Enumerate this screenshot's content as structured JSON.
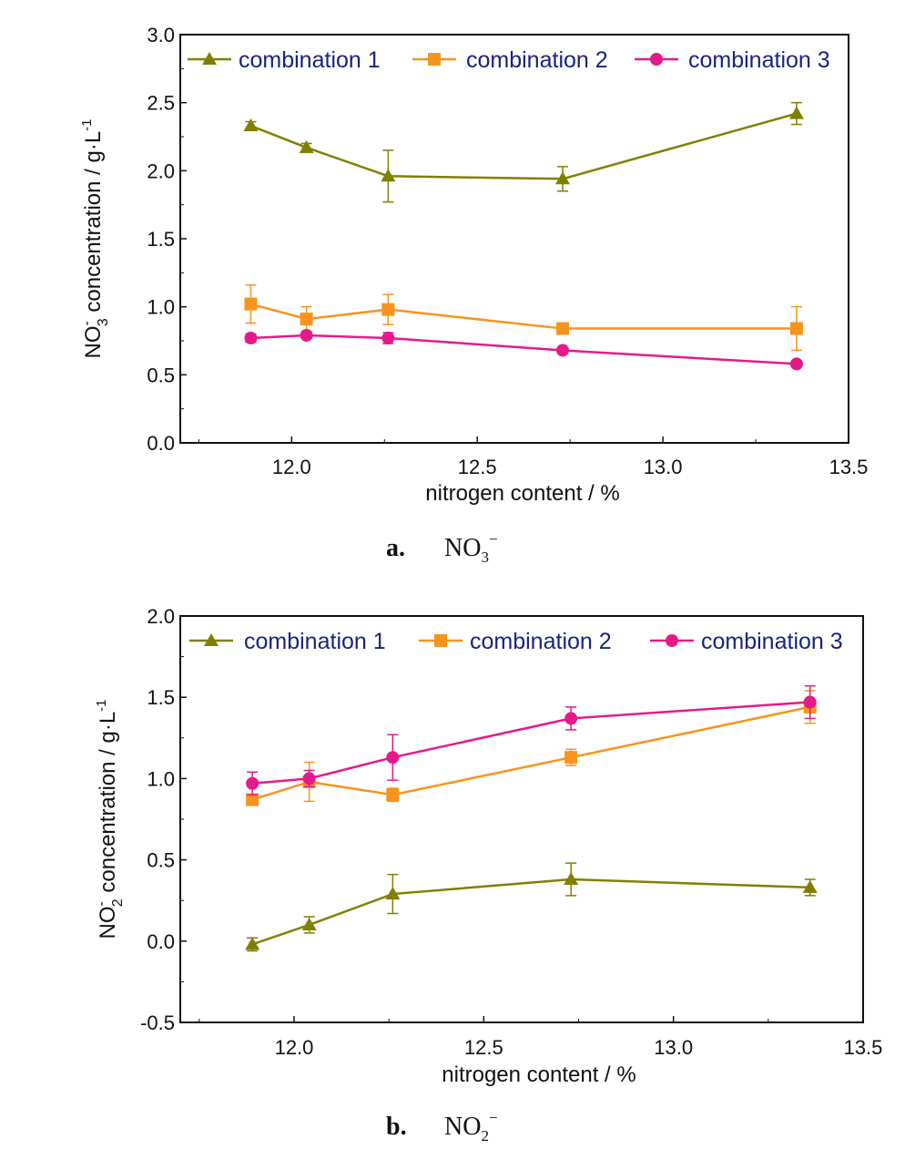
{
  "chart_data": [
    {
      "type": "line",
      "panel_label": "a.",
      "caption_base": "NO",
      "caption_sub": "3",
      "caption_sup": "−",
      "ylabel_main": "NO",
      "ylabel_sup": "-",
      "ylabel_sub": "3",
      "ylabel_rest": " concentration / g·L",
      "ylabel_unit_sup": "-1",
      "xlabel": "nitrogen content / %",
      "xlim": [
        11.7,
        13.5
      ],
      "ylim": [
        0.0,
        3.0
      ],
      "xticks": [
        "12.0",
        "12.5",
        "13.0",
        "13.5"
      ],
      "yticks": [
        "0.0",
        "0.5",
        "1.0",
        "1.5",
        "2.0",
        "2.5",
        "3.0"
      ],
      "legend_position": "top",
      "x": [
        11.89,
        12.04,
        12.26,
        12.73,
        13.36
      ],
      "series": [
        {
          "name": "combination 1",
          "color": "#808000",
          "marker": "triangle",
          "values": [
            2.33,
            2.17,
            1.96,
            1.94,
            2.42
          ],
          "errors": [
            0.03,
            0.03,
            0.19,
            0.09,
            0.08
          ]
        },
        {
          "name": "combination 2",
          "color": "#f7941d",
          "marker": "square",
          "values": [
            1.02,
            0.91,
            0.98,
            0.84,
            0.84
          ],
          "errors": [
            0.14,
            0.09,
            0.11,
            0.03,
            0.16
          ]
        },
        {
          "name": "combination 3",
          "color": "#e6198a",
          "marker": "circle",
          "values": [
            0.77,
            0.79,
            0.77,
            0.68,
            0.58
          ],
          "errors": [
            0.03,
            0.02,
            0.04,
            0.02,
            0.02
          ]
        }
      ]
    },
    {
      "type": "line",
      "panel_label": "b.",
      "caption_base": "NO",
      "caption_sub": "2",
      "caption_sup": "−",
      "ylabel_main": "NO",
      "ylabel_sup": "-",
      "ylabel_sub": "2",
      "ylabel_rest": " concentration / g·L",
      "ylabel_unit_sup": "-1",
      "xlabel": "nitrogen content / %",
      "xlim": [
        11.7,
        13.5
      ],
      "ylim": [
        -0.5,
        2.0
      ],
      "xticks": [
        "12.0",
        "12.5",
        "13.0",
        "13.5"
      ],
      "yticks": [
        "-0.5",
        "0.0",
        "0.5",
        "1.0",
        "1.5",
        "2.0"
      ],
      "legend_position": "top",
      "x": [
        11.89,
        12.04,
        12.26,
        12.73,
        13.36
      ],
      "series": [
        {
          "name": "combination 1",
          "color": "#808000",
          "marker": "triangle",
          "values": [
            -0.02,
            0.1,
            0.29,
            0.38,
            0.33
          ],
          "errors": [
            0.04,
            0.05,
            0.12,
            0.1,
            0.05
          ]
        },
        {
          "name": "combination 2",
          "color": "#f7941d",
          "marker": "square",
          "values": [
            0.87,
            0.98,
            0.9,
            1.13,
            1.44
          ],
          "errors": [
            0.03,
            0.12,
            0.04,
            0.05,
            0.1
          ]
        },
        {
          "name": "combination 3",
          "color": "#e6198a",
          "marker": "circle",
          "values": [
            0.97,
            1.0,
            1.13,
            1.37,
            1.47
          ],
          "errors": [
            0.07,
            0.05,
            0.14,
            0.07,
            0.1
          ]
        }
      ]
    }
  ]
}
